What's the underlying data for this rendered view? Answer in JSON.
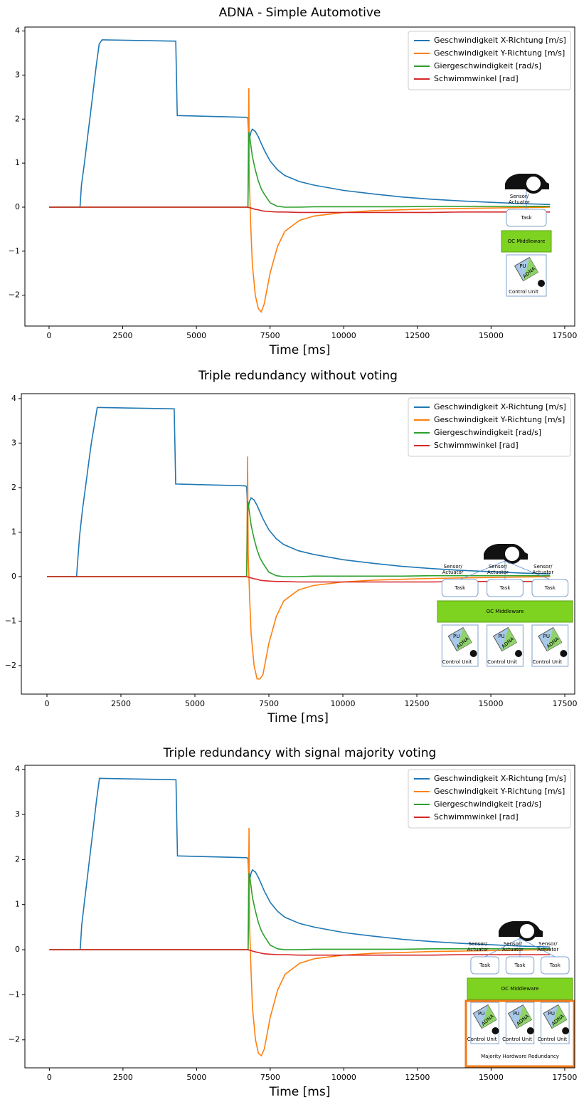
{
  "chart_data": [
    {
      "type": "line",
      "title": "ADNA - Simple Automotive",
      "xlabel": "Time [ms]",
      "x": [
        0,
        1050,
        1100,
        1200,
        1300,
        1400,
        1500,
        1600,
        1700,
        1800,
        4300,
        4350,
        6700,
        6750,
        6780,
        6800,
        6850,
        6900,
        7000,
        7100,
        7200,
        7300,
        7500,
        7750,
        8000,
        8500,
        9000,
        10000,
        11000,
        12000,
        13000,
        14000,
        15000,
        16000,
        17000
      ],
      "series": [
        {
          "name": "Geschwindigkeit X-Richtung [m/s]",
          "color": "#1f77b4",
          "values": [
            0,
            0,
            0.5,
            1.0,
            1.55,
            2.1,
            2.65,
            3.2,
            3.7,
            3.8,
            3.77,
            2.08,
            2.04,
            2.02,
            1.5,
            1.55,
            1.7,
            1.77,
            1.72,
            1.6,
            1.45,
            1.3,
            1.05,
            0.85,
            0.72,
            0.58,
            0.5,
            0.38,
            0.3,
            0.23,
            0.18,
            0.14,
            0.11,
            0.08,
            0.06
          ]
        },
        {
          "name": "Geschwindigkeit Y-Richtung [m/s]",
          "color": "#ff7f0e",
          "values": [
            0,
            0,
            0,
            0,
            0,
            0,
            0,
            0,
            0,
            0,
            0,
            0,
            0,
            0,
            2.7,
            0.5,
            -0.5,
            -1.3,
            -2.0,
            -2.3,
            -2.38,
            -2.2,
            -1.5,
            -0.9,
            -0.55,
            -0.3,
            -0.2,
            -0.12,
            -0.08,
            -0.06,
            -0.04,
            -0.03,
            -0.02,
            -0.01,
            0
          ]
        },
        {
          "name": "Giergeschwindigkeit [rad/s]",
          "color": "#2ca02c",
          "values": [
            0,
            0,
            0,
            0,
            0,
            0,
            0,
            0,
            0,
            0,
            0,
            0,
            0,
            0,
            1.7,
            1.65,
            1.4,
            1.15,
            0.85,
            0.6,
            0.42,
            0.3,
            0.1,
            0.02,
            0,
            0,
            0.01,
            0.01,
            0.01,
            0.01,
            0.02,
            0.02,
            0.02,
            0.02,
            0.02
          ]
        },
        {
          "name": "Schwimmwinkel [rad]",
          "color": "#d62728",
          "values": [
            0,
            0,
            0,
            0,
            0,
            0,
            0,
            0,
            0,
            0,
            0,
            0,
            0,
            0,
            -0.01,
            -0.01,
            -0.02,
            -0.03,
            -0.05,
            -0.06,
            -0.08,
            -0.09,
            -0.1,
            -0.11,
            -0.11,
            -0.12,
            -0.12,
            -0.12,
            -0.12,
            -0.12,
            -0.12,
            -0.11,
            -0.11,
            -0.11,
            -0.11
          ]
        }
      ],
      "xlim": [
        -820,
        17840
      ],
      "ylim": [
        -2.7,
        4.09
      ],
      "xticks": [
        0,
        2500,
        5000,
        7500,
        10000,
        12500,
        15000,
        17500
      ],
      "yticks": [
        {
          "value": -2,
          "label": "−2"
        },
        {
          "value": -1,
          "label": "−1"
        },
        0,
        1,
        2,
        3,
        4
      ],
      "legend": "upper right",
      "inset": {
        "sensor": [
          "Sensor/",
          "Actuator"
        ],
        "task": "Task",
        "middleware": "OC Middleware",
        "pu": "PU",
        "adna": "ADNA",
        "unit": "Control Unit"
      }
    },
    {
      "type": "line",
      "title": "Triple redundancy without voting",
      "xlabel": "Time [ms]",
      "x": [
        0,
        1000,
        1100,
        1200,
        1300,
        1400,
        1500,
        1600,
        1700,
        1800,
        4300,
        4350,
        6700,
        6750,
        6780,
        6800,
        6850,
        6900,
        7000,
        7100,
        7200,
        7300,
        7500,
        7750,
        8000,
        8500,
        9000,
        10000,
        11000,
        12000,
        13000,
        14000,
        15000,
        16000,
        17000
      ],
      "series": [
        {
          "name": "Geschwindigkeit X-Richtung [m/s]",
          "color": "#1f77b4",
          "values": [
            0,
            0,
            0.9,
            1.5,
            2.0,
            2.5,
            3.0,
            3.4,
            3.8,
            3.8,
            3.77,
            2.08,
            2.04,
            2.02,
            1.5,
            1.55,
            1.7,
            1.77,
            1.72,
            1.6,
            1.45,
            1.3,
            1.05,
            0.85,
            0.72,
            0.58,
            0.5,
            0.38,
            0.3,
            0.23,
            0.18,
            0.14,
            0.11,
            0.08,
            0.06
          ]
        },
        {
          "name": "Geschwindigkeit Y-Richtung [m/s]",
          "color": "#ff7f0e",
          "values": [
            0,
            0,
            0,
            0,
            0,
            0,
            0,
            0,
            0,
            0,
            0,
            0,
            0,
            0,
            2.7,
            0.5,
            -0.5,
            -1.3,
            -2.0,
            -2.3,
            -2.3,
            -2.2,
            -1.5,
            -0.9,
            -0.55,
            -0.3,
            -0.2,
            -0.12,
            -0.08,
            -0.06,
            -0.04,
            -0.03,
            -0.02,
            -0.01,
            0
          ]
        },
        {
          "name": "Giergeschwindigkeit [rad/s]",
          "color": "#2ca02c",
          "values": [
            0,
            0,
            0,
            0,
            0,
            0,
            0,
            0,
            0,
            0,
            0,
            0,
            0,
            0,
            1.7,
            1.65,
            1.4,
            1.15,
            0.85,
            0.6,
            0.42,
            0.3,
            0.1,
            0.02,
            0,
            0,
            0.01,
            0.01,
            0.01,
            0.01,
            0.02,
            0.02,
            0.02,
            0.02,
            0.02
          ]
        },
        {
          "name": "Schwimmwinkel [rad]",
          "color": "#d62728",
          "values": [
            0,
            0,
            0,
            0,
            0,
            0,
            0,
            0,
            0,
            0,
            0,
            0,
            0,
            0,
            -0.01,
            -0.01,
            -0.02,
            -0.03,
            -0.05,
            -0.06,
            -0.08,
            -0.09,
            -0.1,
            -0.11,
            -0.11,
            -0.12,
            -0.12,
            -0.12,
            -0.12,
            -0.12,
            -0.12,
            -0.11,
            -0.11,
            -0.11,
            -0.11
          ]
        }
      ],
      "xlim": [
        -865,
        17835
      ],
      "ylim": [
        -2.64,
        4.11
      ],
      "xticks": [
        0,
        2500,
        5000,
        7500,
        10000,
        12500,
        15000,
        17500
      ],
      "yticks": [
        {
          "value": -2,
          "label": "−2"
        },
        {
          "value": -1,
          "label": "−1"
        },
        0,
        1,
        2,
        3,
        4
      ],
      "legend": "upper right",
      "inset": {
        "sensor": [
          "Sensor/",
          "Actuator"
        ],
        "task": "Task",
        "middleware": "OC Middleware",
        "pu": "PU",
        "adna": "ADNA",
        "unit": "Control Unit"
      }
    },
    {
      "type": "line",
      "title": "Triple redundancy with signal majority voting",
      "xlabel": "Time [ms]",
      "x": [
        0,
        1050,
        1100,
        1200,
        1300,
        1400,
        1500,
        1600,
        1700,
        1800,
        4300,
        4350,
        6700,
        6750,
        6780,
        6800,
        6850,
        6900,
        7000,
        7100,
        7200,
        7300,
        7500,
        7750,
        8000,
        8500,
        9000,
        10000,
        11000,
        12000,
        13000,
        14000,
        15000,
        16000,
        17000
      ],
      "series": [
        {
          "name": "Geschwindigkeit X-Richtung [m/s]",
          "color": "#1f77b4",
          "values": [
            0,
            0,
            0.55,
            1.1,
            1.65,
            2.2,
            2.75,
            3.3,
            3.8,
            3.8,
            3.77,
            2.08,
            2.04,
            2.02,
            1.5,
            1.55,
            1.7,
            1.77,
            1.72,
            1.6,
            1.45,
            1.3,
            1.05,
            0.85,
            0.72,
            0.58,
            0.5,
            0.38,
            0.3,
            0.23,
            0.18,
            0.14,
            0.11,
            0.08,
            0.06
          ]
        },
        {
          "name": "Geschwindigkeit Y-Richtung [m/s]",
          "color": "#ff7f0e",
          "values": [
            0,
            0,
            0,
            0,
            0,
            0,
            0,
            0,
            0,
            0,
            0,
            0,
            0,
            0,
            2.7,
            0.5,
            -0.5,
            -1.3,
            -2.0,
            -2.3,
            -2.35,
            -2.2,
            -1.5,
            -0.9,
            -0.55,
            -0.3,
            -0.2,
            -0.12,
            -0.08,
            -0.06,
            -0.04,
            -0.03,
            -0.02,
            -0.01,
            0
          ]
        },
        {
          "name": "Giergeschwindigkeit [rad/s]",
          "color": "#2ca02c",
          "values": [
            0,
            0,
            0,
            0,
            0,
            0,
            0,
            0,
            0,
            0,
            0,
            0,
            0,
            0,
            1.7,
            1.65,
            1.4,
            1.15,
            0.85,
            0.6,
            0.42,
            0.3,
            0.1,
            0.02,
            0,
            0,
            0.01,
            0.01,
            0.01,
            0.01,
            0.02,
            0.02,
            0.02,
            0.02,
            0.02
          ]
        },
        {
          "name": "Schwimmwinkel [rad]",
          "color": "#d62728",
          "values": [
            0,
            0,
            0,
            0,
            0,
            0,
            0,
            0,
            0,
            0,
            0,
            0,
            0,
            0,
            -0.01,
            -0.01,
            -0.02,
            -0.03,
            -0.05,
            -0.06,
            -0.08,
            -0.09,
            -0.1,
            -0.11,
            -0.11,
            -0.12,
            -0.12,
            -0.12,
            -0.12,
            -0.12,
            -0.12,
            -0.11,
            -0.11,
            -0.11,
            -0.11
          ]
        }
      ],
      "xlim": [
        -830,
        17840
      ],
      "ylim": [
        -2.62,
        4.09
      ],
      "xticks": [
        0,
        2500,
        5000,
        7500,
        10000,
        12500,
        15000,
        17500
      ],
      "yticks": [
        {
          "value": -2,
          "label": "−2"
        },
        {
          "value": -1,
          "label": "−1"
        },
        0,
        1,
        2,
        3,
        4
      ],
      "legend": "upper right",
      "inset": {
        "sensor": [
          "Sensor/",
          "Actuator"
        ],
        "task": "Task",
        "middleware": "OC Middleware",
        "pu": "PU",
        "adna": "ADNA",
        "unit": "Control Unit",
        "note": "Majority Hardware Redundancy"
      }
    }
  ]
}
